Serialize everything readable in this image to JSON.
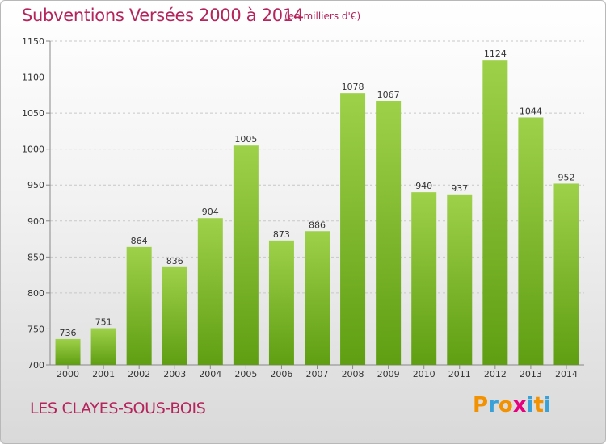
{
  "title": "Subventions Versées 2000 à 2014",
  "subtitle": "(en milliers d'€)",
  "place": "LES CLAYES-SOUS-BOIS",
  "logo": {
    "text": "Proxiti",
    "letters": [
      "P",
      "r",
      "o",
      "x",
      "i",
      "t",
      "i"
    ],
    "colors": [
      "#f39200",
      "#3aa0d8",
      "#f39200",
      "#e6007e",
      "#3aa0d8",
      "#f39200",
      "#3aa0d8"
    ]
  },
  "colors": {
    "bar_top": "#9ed14a",
    "bar_bottom": "#5f9e12",
    "title": "#b5245a"
  },
  "chart_data": {
    "type": "bar",
    "categories": [
      "2000",
      "2001",
      "2002",
      "2003",
      "2004",
      "2005",
      "2006",
      "2007",
      "2008",
      "2009",
      "2010",
      "2011",
      "2012",
      "2013",
      "2014"
    ],
    "values": [
      736,
      751,
      864,
      836,
      904,
      1005,
      873,
      886,
      1078,
      1067,
      940,
      937,
      1124,
      1044,
      952
    ],
    "ylim": [
      700,
      1150
    ],
    "yticks": [
      700,
      750,
      800,
      850,
      900,
      950,
      1000,
      1050,
      1100,
      1150
    ],
    "grid": true,
    "title": "Subventions Versées 2000 à 2014",
    "xlabel": "",
    "ylabel": ""
  }
}
